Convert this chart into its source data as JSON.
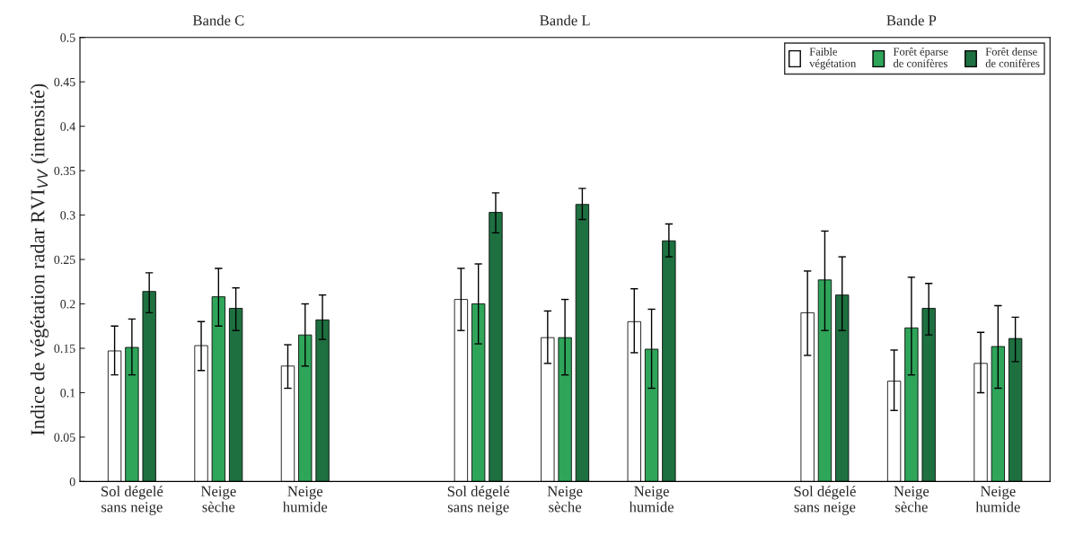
{
  "chart_data": {
    "type": "bar",
    "ylabel": "Indice de végétation radar RVI$_{VV}$ (intensité)",
    "annotations": [
      "Bande C",
      "Bande L",
      "Bande P"
    ],
    "categories": [
      "Sol dégelé\nsans neige",
      "Neige\nsèche",
      "Neige\nhumide",
      null,
      "Sol dégelé\nsans neige",
      "Neige\nsèche",
      "Neige\nhumide",
      null,
      "Sol dégelé\nsans neige",
      "Neige\nsèche",
      "Neige\nhumide"
    ],
    "series": [
      {
        "name": "Faible\nvégétation",
        "color": "#ffffff",
        "values": [
          0.147,
          0.153,
          0.13,
          null,
          0.205,
          0.162,
          0.18,
          null,
          0.19,
          0.113,
          0.133
        ],
        "errors": [
          [
            0.12,
            0.175
          ],
          [
            0.125,
            0.18
          ],
          [
            0.105,
            0.154
          ],
          null,
          [
            0.17,
            0.24
          ],
          [
            0.133,
            0.192
          ],
          [
            0.145,
            0.217
          ],
          null,
          [
            0.142,
            0.237
          ],
          [
            0.08,
            0.148
          ],
          [
            0.1,
            0.168
          ]
        ]
      },
      {
        "name": "Forêt éparse\nde conifères",
        "color": "#2fa55a",
        "values": [
          0.151,
          0.208,
          0.165,
          null,
          0.2,
          0.162,
          0.149,
          null,
          0.227,
          0.173,
          0.152
        ],
        "errors": [
          [
            0.12,
            0.183
          ],
          [
            0.175,
            0.24
          ],
          [
            0.13,
            0.2
          ],
          null,
          [
            0.155,
            0.245
          ],
          [
            0.12,
            0.205
          ],
          [
            0.105,
            0.194
          ],
          null,
          [
            0.17,
            0.282
          ],
          [
            0.12,
            0.23
          ],
          [
            0.105,
            0.198
          ]
        ]
      },
      {
        "name": "Forêt dense\nde conifères",
        "color": "#1e7040",
        "values": [
          0.214,
          0.195,
          0.182,
          null,
          0.303,
          0.312,
          0.271,
          null,
          0.21,
          0.195,
          0.161
        ],
        "errors": [
          [
            0.19,
            0.235
          ],
          [
            0.17,
            0.218
          ],
          [
            0.16,
            0.21
          ],
          null,
          [
            0.28,
            0.325
          ],
          [
            0.295,
            0.33
          ],
          [
            0.253,
            0.29
          ],
          null,
          [
            0.17,
            0.253
          ],
          [
            0.165,
            0.223
          ],
          [
            0.135,
            0.185
          ]
        ]
      }
    ],
    "ylim": [
      0,
      0.5
    ],
    "yticks": [
      0,
      0.05,
      0.1,
      0.15,
      0.2,
      0.25,
      0.3,
      0.35,
      0.4,
      0.45,
      0.5
    ],
    "legend": "top right"
  }
}
